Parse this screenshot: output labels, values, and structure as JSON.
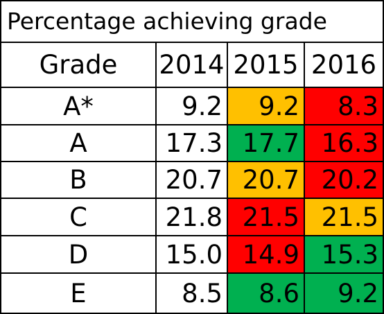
{
  "title": "Percentage achieving grade",
  "headers": {
    "grade": "Grade",
    "y2014": "2014",
    "y2015": "2015",
    "y2016": "2016"
  },
  "rows": [
    {
      "grade": "A*",
      "y2014": "9.2",
      "y2015": "9.2",
      "y2016": "8.3",
      "c2015": "amber",
      "c2016": "red"
    },
    {
      "grade": "A",
      "y2014": "17.3",
      "y2015": "17.7",
      "y2016": "16.3",
      "c2015": "green",
      "c2016": "red"
    },
    {
      "grade": "B",
      "y2014": "20.7",
      "y2015": "20.7",
      "y2016": "20.2",
      "c2015": "amber",
      "c2016": "red"
    },
    {
      "grade": "C",
      "y2014": "21.8",
      "y2015": "21.5",
      "y2016": "21.5",
      "c2015": "red",
      "c2016": "amber"
    },
    {
      "grade": "D",
      "y2014": "15.0",
      "y2015": "14.9",
      "y2016": "15.3",
      "c2015": "red",
      "c2016": "green"
    },
    {
      "grade": "E",
      "y2014": "8.5",
      "y2015": "8.6",
      "y2016": "9.2",
      "c2015": "green",
      "c2016": "green"
    }
  ],
  "colors": {
    "amber": "#ffc000",
    "red": "#ff0000",
    "green": "#00b050"
  }
}
